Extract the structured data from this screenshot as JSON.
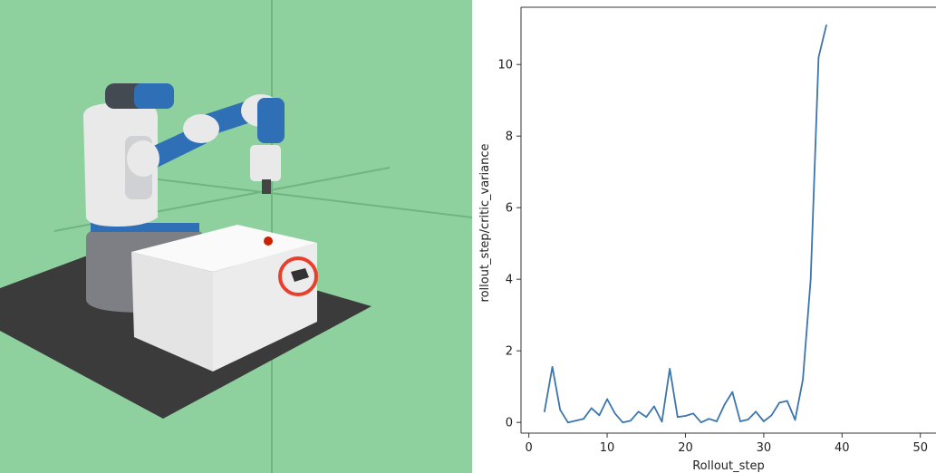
{
  "colors": {
    "sim_background": "#8fd19e",
    "floor": "#3b3b3b",
    "table": "#f2f2f2",
    "robot_accent": "#2f6fb5",
    "target_ball": "#cc2200",
    "highlight_circle": "#e8402c",
    "line": "#3b75af"
  },
  "scene": {
    "highlighted_object": "block-on-table"
  },
  "chart_data": {
    "type": "line",
    "title": "",
    "xlabel": "Rollout_step",
    "ylabel": "rollout_step/critic_variance",
    "xlim": [
      -1,
      52
    ],
    "ylim": [
      -0.3,
      11.6
    ],
    "xticks": [
      0,
      10,
      20,
      30,
      40,
      50
    ],
    "yticks": [
      0,
      2,
      4,
      6,
      8,
      10
    ],
    "grid": false,
    "series": [
      {
        "x": [
          2,
          3,
          4,
          5,
          6,
          7,
          8,
          9,
          10,
          11,
          12,
          13,
          14,
          15,
          16,
          17,
          18,
          19,
          20,
          21,
          22,
          23,
          24,
          25,
          26,
          27,
          28,
          29,
          30,
          31,
          32,
          33,
          34,
          35,
          36,
          37,
          38
        ],
        "values": [
          0.3,
          1.55,
          0.35,
          0.0,
          0.05,
          0.1,
          0.4,
          0.2,
          0.65,
          0.25,
          0.0,
          0.05,
          0.3,
          0.15,
          0.45,
          0.02,
          1.5,
          0.15,
          0.18,
          0.25,
          0.0,
          0.1,
          0.03,
          0.5,
          0.85,
          0.03,
          0.08,
          0.3,
          0.03,
          0.2,
          0.55,
          0.6,
          0.07,
          1.2,
          4.0,
          10.2,
          11.1
        ]
      }
    ]
  }
}
